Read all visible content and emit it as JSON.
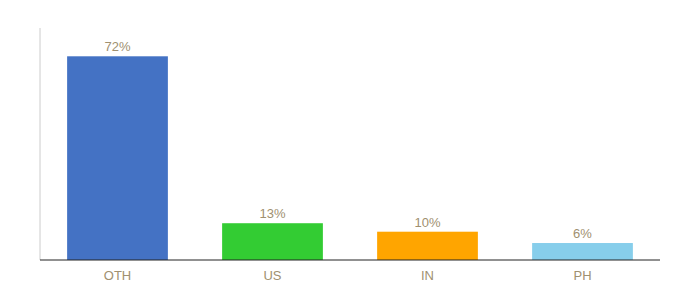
{
  "chart_data": {
    "type": "bar",
    "categories": [
      "OTH",
      "US",
      "IN",
      "PH"
    ],
    "values": [
      72,
      13,
      10,
      6
    ],
    "value_labels": [
      "72%",
      "13%",
      "10%",
      "6%"
    ],
    "colors": [
      "#4472C4",
      "#33CC33",
      "#FFA500",
      "#87CEEB"
    ],
    "ylim": [
      0,
      82
    ],
    "data_labels": true,
    "tick_labels": "x"
  }
}
